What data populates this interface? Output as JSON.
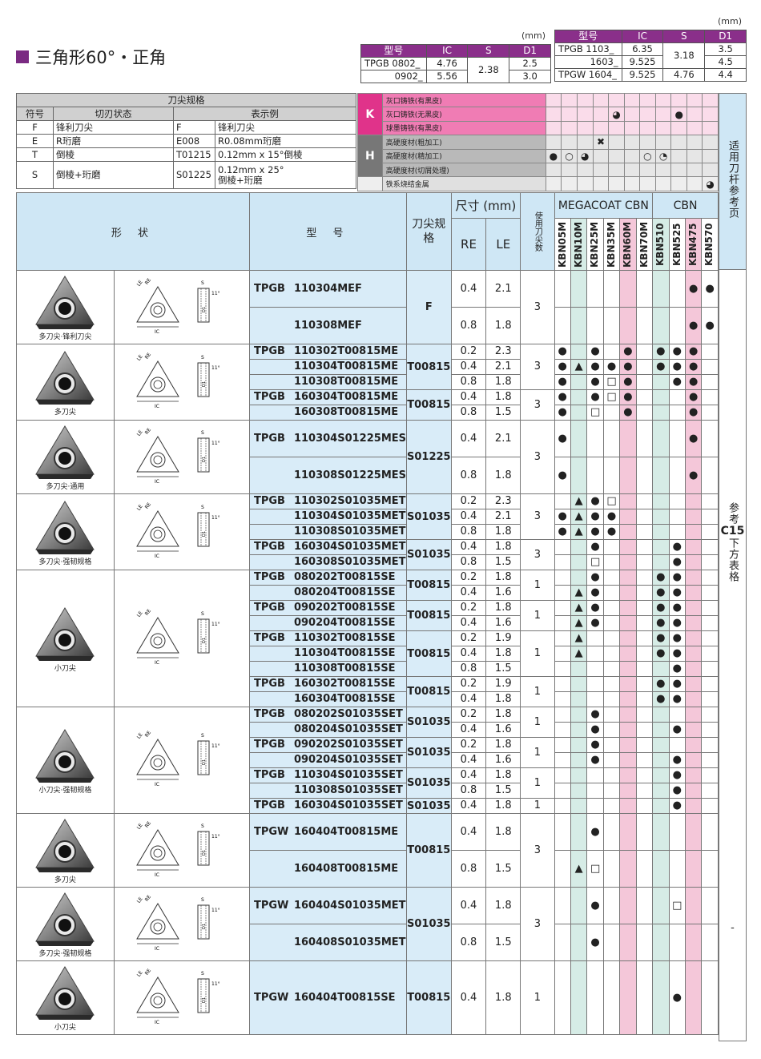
{
  "title": "三角形60°・正角",
  "dims_left": {
    "unit": "(mm)",
    "headers": [
      "型号",
      "IC",
      "S",
      "D1"
    ],
    "rows": [
      {
        "model": "TPGB 0802_",
        "ic": "4.76",
        "s": "2.38",
        "d1": "2.5"
      },
      {
        "model": "0902_",
        "ic": "5.56",
        "s": "",
        "d1": "3.0"
      }
    ]
  },
  "dims_right": {
    "unit": "(mm)",
    "headers": [
      "型号",
      "IC",
      "S",
      "D1"
    ],
    "rows": [
      {
        "model": "TPGB 1103_",
        "ic": "6.35",
        "s": "3.18",
        "d1": "3.5"
      },
      {
        "model": "1603_",
        "ic": "9.525",
        "s": "",
        "d1": "4.5"
      },
      {
        "model": "TPGW 1604_",
        "ic": "9.525",
        "s": "4.76",
        "d1": "4.4"
      }
    ]
  },
  "spec": {
    "title": "刀尖规格",
    "headers": [
      "符号",
      "切刃状态",
      "表示例"
    ],
    "rows": [
      {
        "sym": "F",
        "state": "锋利刀尖",
        "code": "F",
        "desc": "锋利刀尖"
      },
      {
        "sym": "E",
        "state": "R珩磨",
        "code": "E008",
        "desc": "R0.08mm珩磨"
      },
      {
        "sym": "T",
        "state": "倒棱",
        "code": "T01215",
        "desc": "0.12mm x 15°倒棱"
      },
      {
        "sym": "S",
        "state": "倒棱+珩磨",
        "code": "S01225",
        "desc": "0.12mm x 25°",
        "desc2": "倒棱+珩磨"
      }
    ]
  },
  "materials": {
    "groups": [
      {
        "label": "K",
        "rows": [
          {
            "name": "灰口铸铁(有黑皮)",
            "marks": [
              "",
              "",
              "",
              "",
              "",
              "",
              "",
              "",
              "",
              "",
              ""
            ]
          },
          {
            "name": "灰口铸铁(无黑皮)",
            "marks": [
              "",
              "",
              "",
              "",
              "◕",
              "",
              "",
              "",
              "●",
              "",
              ""
            ]
          },
          {
            "name": "球墨铸铁(有黑皮)",
            "marks": [
              "",
              "",
              "",
              "",
              "",
              "",
              "",
              "",
              "",
              "",
              ""
            ]
          }
        ]
      },
      {
        "label": "H",
        "rows": [
          {
            "name": "高硬度材(粗加工)",
            "marks": [
              "",
              "",
              "",
              "✖",
              "",
              "",
              "",
              "",
              "",
              "",
              ""
            ]
          },
          {
            "name": "高硬度材(精加工)",
            "marks": [
              "●",
              "○",
              "◕",
              "",
              "",
              "",
              "○",
              "◔",
              "",
              "",
              ""
            ]
          },
          {
            "name": "高硬度材(切屑处理)",
            "marks": [
              "",
              "",
              "",
              "",
              "",
              "",
              "",
              "",
              "",
              "",
              ""
            ]
          }
        ]
      },
      {
        "label": "",
        "rows": [
          {
            "name": "铁系烧结金属",
            "marks": [
              "",
              "",
              "",
              "",
              "",
              "",
              "",
              "",
              "",
              "",
              "◕"
            ]
          }
        ]
      }
    ]
  },
  "side_labels": {
    "top": "适用刀杆参考页",
    "middle_pre": "参考",
    "middle_code": "C15",
    "middle_post": "下方表格",
    "bottom": "-"
  },
  "table_headers": {
    "shape": "形 状",
    "model": "型 号",
    "spec": "刀尖规格",
    "size": "尺寸 (mm)",
    "re": "RE",
    "le": "LE",
    "edges": "使用刀尖数",
    "mega": "MEGACOAT CBN",
    "cbn": "CBN",
    "grades": [
      "KBN05M",
      "KBN10M",
      "KBN25M",
      "KBN35M",
      "KBN60M",
      "KBN70M",
      "KBN510",
      "KBN525",
      "KBN475",
      "KBN570"
    ]
  },
  "sections": [
    {
      "shape_label": "多刀尖·锋利刀尖",
      "groups": [
        {
          "prefix": "TPGB",
          "spec": "F",
          "edges": "3",
          "items": [
            {
              "code": "110304MEF",
              "re": "0.4",
              "le": "2.1",
              "marks": [
                "",
                "",
                "",
                "",
                "",
                "",
                "",
                "",
                "●",
                "●"
              ]
            },
            {
              "code": "110308MEF",
              "re": "0.8",
              "le": "1.8",
              "marks": [
                "",
                "",
                "",
                "",
                "",
                "",
                "",
                "",
                "●",
                "●"
              ]
            }
          ]
        }
      ]
    },
    {
      "shape_label": "多刀尖",
      "groups": [
        {
          "prefix": "TPGB",
          "spec": "T00815",
          "edges": "3",
          "items": [
            {
              "code": "110302T00815ME",
              "re": "0.2",
              "le": "2.3",
              "marks": [
                "●",
                "",
                "●",
                "",
                "●",
                "",
                "●",
                "●",
                "●",
                ""
              ]
            },
            {
              "code": "110304T00815ME",
              "re": "0.4",
              "le": "2.1",
              "marks": [
                "●",
                "▲",
                "●",
                "●",
                "●",
                "",
                "●",
                "●",
                "●",
                ""
              ]
            },
            {
              "code": "110308T00815ME",
              "re": "0.8",
              "le": "1.8",
              "marks": [
                "●",
                "",
                "●",
                "□",
                "●",
                "",
                "",
                "●",
                "●",
                ""
              ]
            }
          ]
        },
        {
          "prefix": "TPGB",
          "spec": "T00815",
          "edges": "3",
          "items": [
            {
              "code": "160304T00815ME",
              "re": "0.4",
              "le": "1.8",
              "marks": [
                "●",
                "",
                "●",
                "□",
                "●",
                "",
                "",
                "",
                "●",
                ""
              ]
            },
            {
              "code": "160308T00815ME",
              "re": "0.8",
              "le": "1.5",
              "marks": [
                "●",
                "",
                "□",
                "",
                "●",
                "",
                "",
                "",
                "●",
                ""
              ]
            }
          ]
        }
      ]
    },
    {
      "shape_label": "多刀尖·通用",
      "groups": [
        {
          "prefix": "TPGB",
          "spec": "S01225",
          "edges": "3",
          "items": [
            {
              "code": "110304S01225MES",
              "re": "0.4",
              "le": "2.1",
              "marks": [
                "●",
                "",
                "",
                "",
                "",
                "",
                "",
                "",
                "●",
                ""
              ]
            },
            {
              "code": "110308S01225MES",
              "re": "0.8",
              "le": "1.8",
              "marks": [
                "●",
                "",
                "",
                "",
                "",
                "",
                "",
                "",
                "●",
                ""
              ]
            }
          ]
        }
      ]
    },
    {
      "shape_label": "多刀尖·强韧规格",
      "groups": [
        {
          "prefix": "TPGB",
          "spec": "S01035",
          "edges": "3",
          "items": [
            {
              "code": "110302S01035MET",
              "re": "0.2",
              "le": "2.3",
              "marks": [
                "",
                "▲",
                "●",
                "□",
                "",
                "",
                "",
                "",
                "",
                ""
              ]
            },
            {
              "code": "110304S01035MET",
              "re": "0.4",
              "le": "2.1",
              "marks": [
                "●",
                "▲",
                "●",
                "●",
                "",
                "",
                "",
                "",
                "",
                ""
              ]
            },
            {
              "code": "110308S01035MET",
              "re": "0.8",
              "le": "1.8",
              "marks": [
                "●",
                "▲",
                "●",
                "●",
                "",
                "",
                "",
                "",
                "",
                ""
              ]
            }
          ]
        },
        {
          "prefix": "TPGB",
          "spec": "S01035",
          "edges": "3",
          "items": [
            {
              "code": "160304S01035MET",
              "re": "0.4",
              "le": "1.8",
              "marks": [
                "",
                "",
                "●",
                "",
                "",
                "",
                "",
                "●",
                "",
                ""
              ]
            },
            {
              "code": "160308S01035MET",
              "re": "0.8",
              "le": "1.5",
              "marks": [
                "",
                "",
                "□",
                "",
                "",
                "",
                "",
                "●",
                "",
                ""
              ]
            }
          ]
        }
      ]
    },
    {
      "shape_label": "小刀尖",
      "groups": [
        {
          "prefix": "TPGB",
          "spec": "T00815",
          "edges": "1",
          "items": [
            {
              "code": "080202T00815SE",
              "re": "0.2",
              "le": "1.8",
              "marks": [
                "",
                "",
                "●",
                "",
                "",
                "",
                "●",
                "●",
                "",
                ""
              ]
            },
            {
              "code": "080204T00815SE",
              "re": "0.4",
              "le": "1.6",
              "marks": [
                "",
                "▲",
                "●",
                "",
                "",
                "",
                "●",
                "●",
                "",
                ""
              ]
            }
          ]
        },
        {
          "prefix": "TPGB",
          "spec": "T00815",
          "edges": "1",
          "items": [
            {
              "code": "090202T00815SE",
              "re": "0.2",
              "le": "1.8",
              "marks": [
                "",
                "▲",
                "●",
                "",
                "",
                "",
                "●",
                "●",
                "",
                ""
              ]
            },
            {
              "code": "090204T00815SE",
              "re": "0.4",
              "le": "1.6",
              "marks": [
                "",
                "▲",
                "●",
                "",
                "",
                "",
                "●",
                "●",
                "",
                ""
              ]
            }
          ]
        },
        {
          "prefix": "TPGB",
          "spec": "T00815",
          "edges": "1",
          "items": [
            {
              "code": "110302T00815SE",
              "re": "0.2",
              "le": "1.9",
              "marks": [
                "",
                "▲",
                "",
                "",
                "",
                "",
                "●",
                "●",
                "",
                ""
              ]
            },
            {
              "code": "110304T00815SE",
              "re": "0.4",
              "le": "1.8",
              "marks": [
                "",
                "▲",
                "",
                "",
                "",
                "",
                "●",
                "●",
                "",
                ""
              ]
            },
            {
              "code": "110308T00815SE",
              "re": "0.8",
              "le": "1.5",
              "marks": [
                "",
                "",
                "",
                "",
                "",
                "",
                "",
                "●",
                "",
                ""
              ]
            }
          ]
        },
        {
          "prefix": "TPGB",
          "spec": "T00815",
          "edges": "1",
          "items": [
            {
              "code": "160302T00815SE",
              "re": "0.2",
              "le": "1.9",
              "marks": [
                "",
                "",
                "",
                "",
                "",
                "",
                "●",
                "●",
                "",
                ""
              ]
            },
            {
              "code": "160304T00815SE",
              "re": "0.4",
              "le": "1.8",
              "marks": [
                "",
                "",
                "",
                "",
                "",
                "",
                "●",
                "●",
                "",
                ""
              ]
            }
          ]
        }
      ]
    },
    {
      "shape_label": "小刀尖·强韧规格",
      "groups": [
        {
          "prefix": "TPGB",
          "spec": "S01035",
          "edges": "1",
          "items": [
            {
              "code": "080202S01035SET",
              "re": "0.2",
              "le": "1.8",
              "marks": [
                "",
                "",
                "●",
                "",
                "",
                "",
                "",
                "",
                "",
                ""
              ]
            },
            {
              "code": "080204S01035SET",
              "re": "0.4",
              "le": "1.6",
              "marks": [
                "",
                "",
                "●",
                "",
                "",
                "",
                "",
                "●",
                "",
                ""
              ]
            }
          ]
        },
        {
          "prefix": "TPGB",
          "spec": "S01035",
          "edges": "1",
          "items": [
            {
              "code": "090202S01035SET",
              "re": "0.2",
              "le": "1.8",
              "marks": [
                "",
                "",
                "●",
                "",
                "",
                "",
                "",
                "",
                "",
                ""
              ]
            },
            {
              "code": "090204S01035SET",
              "re": "0.4",
              "le": "1.6",
              "marks": [
                "",
                "",
                "●",
                "",
                "",
                "",
                "",
                "●",
                "",
                ""
              ]
            }
          ]
        },
        {
          "prefix": "TPGB",
          "spec": "S01035",
          "edges": "1",
          "items": [
            {
              "code": "110304S01035SET",
              "re": "0.4",
              "le": "1.8",
              "marks": [
                "",
                "",
                "",
                "",
                "",
                "",
                "",
                "●",
                "",
                ""
              ]
            },
            {
              "code": "110308S01035SET",
              "re": "0.8",
              "le": "1.5",
              "marks": [
                "",
                "",
                "",
                "",
                "",
                "",
                "",
                "●",
                "",
                ""
              ]
            }
          ]
        },
        {
          "prefix": "TPGB",
          "spec": "S01035",
          "edges": "1",
          "items": [
            {
              "code": "160304S01035SET",
              "re": "0.4",
              "le": "1.8",
              "marks": [
                "",
                "",
                "",
                "",
                "",
                "",
                "",
                "●",
                "",
                ""
              ]
            }
          ]
        }
      ]
    },
    {
      "shape_label": "多刀尖",
      "groups": [
        {
          "prefix": "TPGW",
          "spec": "T00815",
          "edges": "3",
          "items": [
            {
              "code": "160404T00815ME",
              "re": "0.4",
              "le": "1.8",
              "marks": [
                "",
                "",
                "●",
                "",
                "",
                "",
                "",
                "",
                "",
                ""
              ]
            },
            {
              "code": "160408T00815ME",
              "re": "0.8",
              "le": "1.5",
              "marks": [
                "",
                "▲",
                "□",
                "",
                "",
                "",
                "",
                "",
                "",
                ""
              ]
            }
          ]
        }
      ]
    },
    {
      "shape_label": "多刀尖·强韧规格",
      "groups": [
        {
          "prefix": "TPGW",
          "spec": "S01035",
          "edges": "3",
          "items": [
            {
              "code": "160404S01035MET",
              "re": "0.4",
              "le": "1.8",
              "marks": [
                "",
                "",
                "●",
                "",
                "",
                "",
                "",
                "□",
                "",
                ""
              ]
            },
            {
              "code": "160408S01035MET",
              "re": "0.8",
              "le": "1.5",
              "marks": [
                "",
                "",
                "●",
                "",
                "",
                "",
                "",
                "",
                "",
                ""
              ]
            }
          ]
        }
      ]
    },
    {
      "shape_label": "小刀尖",
      "groups": [
        {
          "prefix": "TPGW",
          "spec": "T00815",
          "edges": "1",
          "items": [
            {
              "code": "160404T00815SE",
              "re": "0.4",
              "le": "1.8",
              "marks": [
                "",
                "",
                "",
                "",
                "",
                "",
                "",
                "●",
                "",
                ""
              ]
            }
          ]
        }
      ]
    }
  ]
}
